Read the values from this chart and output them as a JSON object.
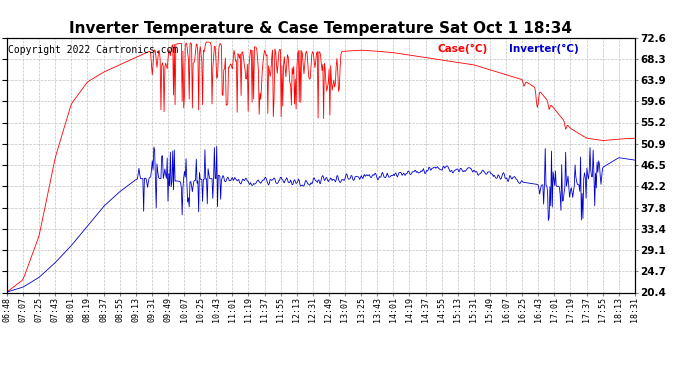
{
  "title": "Inverter Temperature & Case Temperature Sat Oct 1 18:34",
  "copyright": "Copyright 2022 Cartronics.com",
  "legend_case": "Case(°C)",
  "legend_inverter": "Inverter(°C)",
  "ylabel_right_ticks": [
    20.4,
    24.7,
    29.1,
    33.4,
    37.8,
    42.2,
    46.5,
    50.9,
    55.2,
    59.6,
    63.9,
    68.3,
    72.6
  ],
  "ylim": [
    20.4,
    72.6
  ],
  "background_color": "#ffffff",
  "grid_color": "#bbbbbb",
  "case_color": "#ff0000",
  "inverter_color": "#0000cc",
  "title_fontsize": 11,
  "copyright_fontsize": 7,
  "xtick_fontsize": 6,
  "ytick_fontsize": 7.5,
  "x_labels": [
    "06:48",
    "07:07",
    "07:25",
    "07:43",
    "08:01",
    "08:19",
    "08:37",
    "08:55",
    "09:13",
    "09:31",
    "09:49",
    "10:07",
    "10:25",
    "10:43",
    "11:01",
    "11:19",
    "11:37",
    "11:55",
    "12:13",
    "12:31",
    "12:49",
    "13:07",
    "13:25",
    "13:43",
    "14:01",
    "14:19",
    "14:37",
    "14:55",
    "15:13",
    "15:31",
    "15:49",
    "16:07",
    "16:25",
    "16:43",
    "17:01",
    "17:19",
    "17:37",
    "17:55",
    "18:13",
    "18:31"
  ]
}
